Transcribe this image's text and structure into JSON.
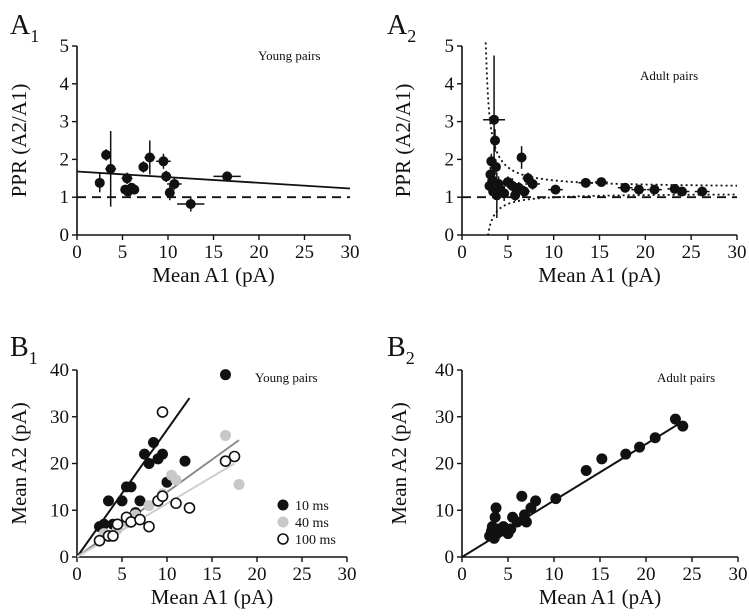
{
  "chart_data": [
    {
      "id": "A1",
      "type": "scatter",
      "label": "A",
      "label_sub": "1",
      "title": "Young pairs",
      "xlabel": "Mean A1 (pA)",
      "ylabel": "PPR (A2/A1)",
      "xlim": [
        0,
        30
      ],
      "ylim": [
        0,
        5
      ],
      "xticks": [
        "0",
        "5",
        "10",
        "15",
        "20",
        "25",
        "30"
      ],
      "yticks": [
        "0",
        "1",
        "2",
        "3",
        "4",
        "5"
      ],
      "points": [
        {
          "x": 2.5,
          "y": 1.38,
          "xerr": 0,
          "yerr": 0.25
        },
        {
          "x": 3.2,
          "y": 2.12,
          "xerr": 0.3,
          "yerr": 0.15
        },
        {
          "x": 3.7,
          "y": 1.75,
          "xerr": 0.6,
          "yerr": 1.0
        },
        {
          "x": 5.3,
          "y": 1.2,
          "xerr": 0.5,
          "yerr": 0.1
        },
        {
          "x": 5.5,
          "y": 1.5,
          "xerr": 0.6,
          "yerr": 0.15
        },
        {
          "x": 5.6,
          "y": 1.15,
          "xerr": 0.5,
          "yerr": 0.1
        },
        {
          "x": 6.0,
          "y": 1.25,
          "xerr": 0.4,
          "yerr": 0.12
        },
        {
          "x": 6.3,
          "y": 1.2,
          "xerr": 0.4,
          "yerr": 0.1
        },
        {
          "x": 7.3,
          "y": 1.8,
          "xerr": 0.5,
          "yerr": 0.15
        },
        {
          "x": 8.0,
          "y": 2.05,
          "xerr": 0.6,
          "yerr": 0.45
        },
        {
          "x": 9.5,
          "y": 1.95,
          "xerr": 0.8,
          "yerr": 0.2
        },
        {
          "x": 9.8,
          "y": 1.55,
          "xerr": 0.5,
          "yerr": 0.15
        },
        {
          "x": 10.2,
          "y": 1.12,
          "xerr": 0.5,
          "yerr": 0.2
        },
        {
          "x": 10.7,
          "y": 1.35,
          "xerr": 0.8,
          "yerr": 0.15
        },
        {
          "x": 12.5,
          "y": 0.82,
          "xerr": 1.5,
          "yerr": 0.2
        },
        {
          "x": 16.5,
          "y": 1.55,
          "xerr": 1.5,
          "yerr": 0.1
        }
      ],
      "lines": [
        {
          "style": "solid",
          "color": "#111111",
          "x": [
            0,
            30
          ],
          "y": [
            1.68,
            1.23
          ]
        },
        {
          "style": "dashed",
          "color": "#111111",
          "x": [
            0,
            30
          ],
          "y": [
            1.0,
            1.0
          ]
        }
      ]
    },
    {
      "id": "A2",
      "type": "scatter",
      "label": "A",
      "label_sub": "2",
      "title": "Adult pairs",
      "xlabel": "Mean A1 (pA)",
      "ylabel": "PPR (A2/A1)",
      "xlim": [
        0,
        30
      ],
      "ylim": [
        0,
        5
      ],
      "xticks": [
        "0",
        "5",
        "10",
        "15",
        "20",
        "25",
        "30"
      ],
      "yticks": [
        "0",
        "1",
        "2",
        "3",
        "4",
        "5"
      ],
      "points": [
        {
          "x": 3.0,
          "y": 1.3,
          "xerr": 0.4,
          "yerr": 0.2
        },
        {
          "x": 3.1,
          "y": 1.6,
          "xerr": 0.4,
          "yerr": 0.2
        },
        {
          "x": 3.2,
          "y": 1.95,
          "xerr": 0.4,
          "yerr": 0.2
        },
        {
          "x": 3.3,
          "y": 1.45,
          "xerr": 0.3,
          "yerr": 0.2
        },
        {
          "x": 3.4,
          "y": 1.15,
          "xerr": 0.3,
          "yerr": 0.15
        },
        {
          "x": 3.5,
          "y": 3.05,
          "xerr": 1.2,
          "yerr": 1.7
        },
        {
          "x": 3.6,
          "y": 2.5,
          "xerr": 0.3,
          "yerr": 0.3
        },
        {
          "x": 3.7,
          "y": 1.8,
          "xerr": 0.4,
          "yerr": 0.2
        },
        {
          "x": 3.8,
          "y": 1.05,
          "xerr": 0.4,
          "yerr": 0.6
        },
        {
          "x": 4.0,
          "y": 1.35,
          "xerr": 0.3,
          "yerr": 0.2
        },
        {
          "x": 4.2,
          "y": 1.2,
          "xerr": 0.3,
          "yerr": 0.15
        },
        {
          "x": 4.6,
          "y": 1.1,
          "xerr": 0.5,
          "yerr": 0.2
        },
        {
          "x": 5.0,
          "y": 1.4,
          "xerr": 0.5,
          "yerr": 0.15
        },
        {
          "x": 5.5,
          "y": 1.3,
          "xerr": 0.6,
          "yerr": 0.2
        },
        {
          "x": 5.8,
          "y": 1.05,
          "xerr": 0.5,
          "yerr": 0.15
        },
        {
          "x": 6.2,
          "y": 1.25,
          "xerr": 0.5,
          "yerr": 0.15
        },
        {
          "x": 6.5,
          "y": 2.05,
          "xerr": 0.5,
          "yerr": 0.3
        },
        {
          "x": 6.8,
          "y": 1.15,
          "xerr": 0.6,
          "yerr": 0.15
        },
        {
          "x": 7.2,
          "y": 1.5,
          "xerr": 0.6,
          "yerr": 0.15
        },
        {
          "x": 7.7,
          "y": 1.35,
          "xerr": 0.8,
          "yerr": 0.15
        },
        {
          "x": 10.2,
          "y": 1.2,
          "xerr": 0.8,
          "yerr": 0.1
        },
        {
          "x": 13.5,
          "y": 1.38,
          "xerr": 0.8,
          "yerr": 0.05
        },
        {
          "x": 15.2,
          "y": 1.4,
          "xerr": 0.7,
          "yerr": 0.05
        },
        {
          "x": 17.8,
          "y": 1.25,
          "xerr": 0.8,
          "yerr": 0.05
        },
        {
          "x": 19.3,
          "y": 1.2,
          "xerr": 0.8,
          "yerr": 0.05
        },
        {
          "x": 21.0,
          "y": 1.2,
          "xerr": 0.8,
          "yerr": 0.05
        },
        {
          "x": 23.2,
          "y": 1.22,
          "xerr": 0.8,
          "yerr": 0.05
        },
        {
          "x": 24.0,
          "y": 1.15,
          "xerr": 0.8,
          "yerr": 0.05
        },
        {
          "x": 26.2,
          "y": 1.15,
          "xerr": 0.8,
          "yerr": 0.05
        }
      ],
      "curves": [
        {
          "style": "dotted",
          "color": "#111111",
          "kind": "upper-envelope"
        },
        {
          "style": "dotted",
          "color": "#111111",
          "kind": "lower-envelope"
        }
      ],
      "lines": [
        {
          "style": "dashed",
          "color": "#111111",
          "x": [
            0,
            30
          ],
          "y": [
            1.0,
            1.0
          ]
        }
      ]
    },
    {
      "id": "B1",
      "type": "scatter",
      "label": "B",
      "label_sub": "1",
      "title": "Young pairs",
      "xlabel": "Mean A1 (pA)",
      "ylabel": "Mean A2 (pA)",
      "xlim": [
        0,
        30
      ],
      "ylim": [
        0,
        40
      ],
      "xticks": [
        "0",
        "5",
        "10",
        "15",
        "20",
        "25",
        "30"
      ],
      "yticks": [
        "0",
        "10",
        "20",
        "30",
        "40"
      ],
      "series": [
        {
          "name": "10 ms",
          "marker": "filled",
          "color": "#111111",
          "points": [
            [
              2.5,
              6.5
            ],
            [
              3.0,
              7.0
            ],
            [
              3.5,
              12.0
            ],
            [
              4.0,
              7.0
            ],
            [
              5.0,
              12.0
            ],
            [
              5.5,
              15.0
            ],
            [
              6.0,
              15.0
            ],
            [
              6.5,
              9.5
            ],
            [
              7.0,
              12.0
            ],
            [
              7.5,
              22.0
            ],
            [
              8.0,
              20.0
            ],
            [
              8.5,
              24.5
            ],
            [
              9.0,
              21.0
            ],
            [
              9.5,
              22.0
            ],
            [
              10.0,
              16.0
            ],
            [
              12.0,
              20.5
            ],
            [
              16.5,
              39.0
            ]
          ],
          "fit": [
            0,
            0,
            12.5,
            34
          ]
        },
        {
          "name": "40 ms",
          "marker": "gray",
          "color": "#c8c8c8",
          "points": [
            [
              3.0,
              5.0
            ],
            [
              4.5,
              6.0
            ],
            [
              5.5,
              7.5
            ],
            [
              6.5,
              9.0
            ],
            [
              8.0,
              11.0
            ],
            [
              9.5,
              13.5
            ],
            [
              10.5,
              17.5
            ],
            [
              11.0,
              16.5
            ],
            [
              16.5,
              26.0
            ],
            [
              18.0,
              15.5
            ]
          ],
          "fit": [
            0,
            0,
            18,
            25
          ]
        },
        {
          "name": "100 ms",
          "marker": "open",
          "color": "#111111",
          "points": [
            [
              2.5,
              3.5
            ],
            [
              3.5,
              4.5
            ],
            [
              4.0,
              4.5
            ],
            [
              4.5,
              7.0
            ],
            [
              5.5,
              8.5
            ],
            [
              6.0,
              7.5
            ],
            [
              7.0,
              8.0
            ],
            [
              8.0,
              6.5
            ],
            [
              9.0,
              12.0
            ],
            [
              9.5,
              31.0
            ],
            [
              9.5,
              13.0
            ],
            [
              11.0,
              11.5
            ],
            [
              12.5,
              10.5
            ],
            [
              16.5,
              20.5
            ],
            [
              17.5,
              21.5
            ]
          ],
          "fit": [
            0,
            0,
            17.5,
            20
          ]
        }
      ],
      "fit_colors": [
        "#111111",
        "#8a8a8a",
        "#cfcfcf"
      ]
    },
    {
      "id": "B2",
      "type": "scatter",
      "label": "B",
      "label_sub": "2",
      "title": "Adult pairs",
      "xlabel": "Mean A1 (pA)",
      "ylabel": "Mean A2 (pA)",
      "xlim": [
        0,
        30
      ],
      "ylim": [
        0,
        40
      ],
      "xticks": [
        "0",
        "5",
        "10",
        "15",
        "20",
        "25",
        "30"
      ],
      "yticks": [
        "0",
        "10",
        "20",
        "30",
        "40"
      ],
      "series": [
        {
          "marker": "filled",
          "color": "#111111",
          "points": [
            [
              3.0,
              4.5
            ],
            [
              3.2,
              5.5
            ],
            [
              3.3,
              6.5
            ],
            [
              3.5,
              4.0
            ],
            [
              3.6,
              8.5
            ],
            [
              3.7,
              10.5
            ],
            [
              3.8,
              5.0
            ],
            [
              4.0,
              6.0
            ],
            [
              4.2,
              5.5
            ],
            [
              4.5,
              6.5
            ],
            [
              5.0,
              5.0
            ],
            [
              5.3,
              6.0
            ],
            [
              5.5,
              8.5
            ],
            [
              6.0,
              7.5
            ],
            [
              6.5,
              13.0
            ],
            [
              6.8,
              9.0
            ],
            [
              7.0,
              7.5
            ],
            [
              7.5,
              10.5
            ],
            [
              8.0,
              12.0
            ],
            [
              10.2,
              12.5
            ],
            [
              13.5,
              18.5
            ],
            [
              15.2,
              21.0
            ],
            [
              17.8,
              22.0
            ],
            [
              19.3,
              23.5
            ],
            [
              21.0,
              25.5
            ],
            [
              23.2,
              29.5
            ],
            [
              24.0,
              28.0
            ]
          ],
          "fit": [
            0,
            0,
            24,
            29
          ]
        }
      ]
    }
  ]
}
